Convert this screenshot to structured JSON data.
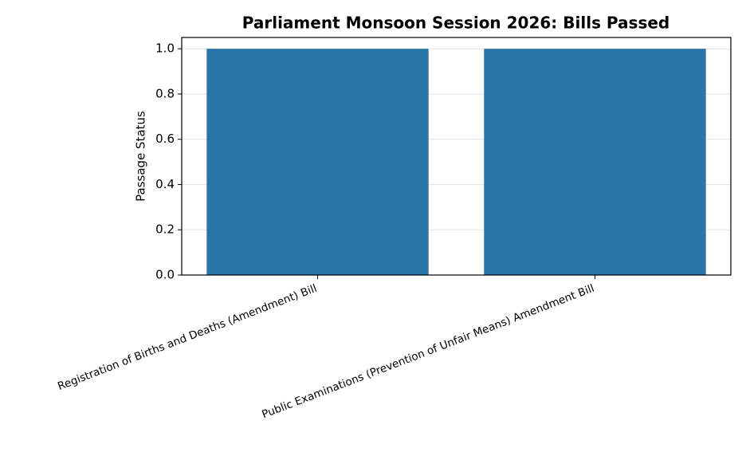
{
  "chart_data": {
    "type": "bar",
    "title": "Parliament Monsoon Session 2026: Bills Passed",
    "y_label": "Passage Status",
    "categories": [
      "Registration of Births and Deaths (Amendment) Bill",
      "Public Examinations (Prevention of Unfair Means) Amendment Bill"
    ],
    "values": [
      1,
      1
    ],
    "color": "#2a75a8",
    "ylim": [
      0,
      1.05
    ],
    "yticks": [
      {
        "value": 0,
        "label": "0.0"
      },
      {
        "value": 0.2,
        "label": "0.2"
      },
      {
        "value": 0.4,
        "label": "0.4"
      },
      {
        "value": 0.6,
        "label": "0.6"
      },
      {
        "value": 0.8,
        "label": "0.8"
      },
      {
        "value": 1,
        "label": "1.0"
      }
    ],
    "grid": true
  }
}
